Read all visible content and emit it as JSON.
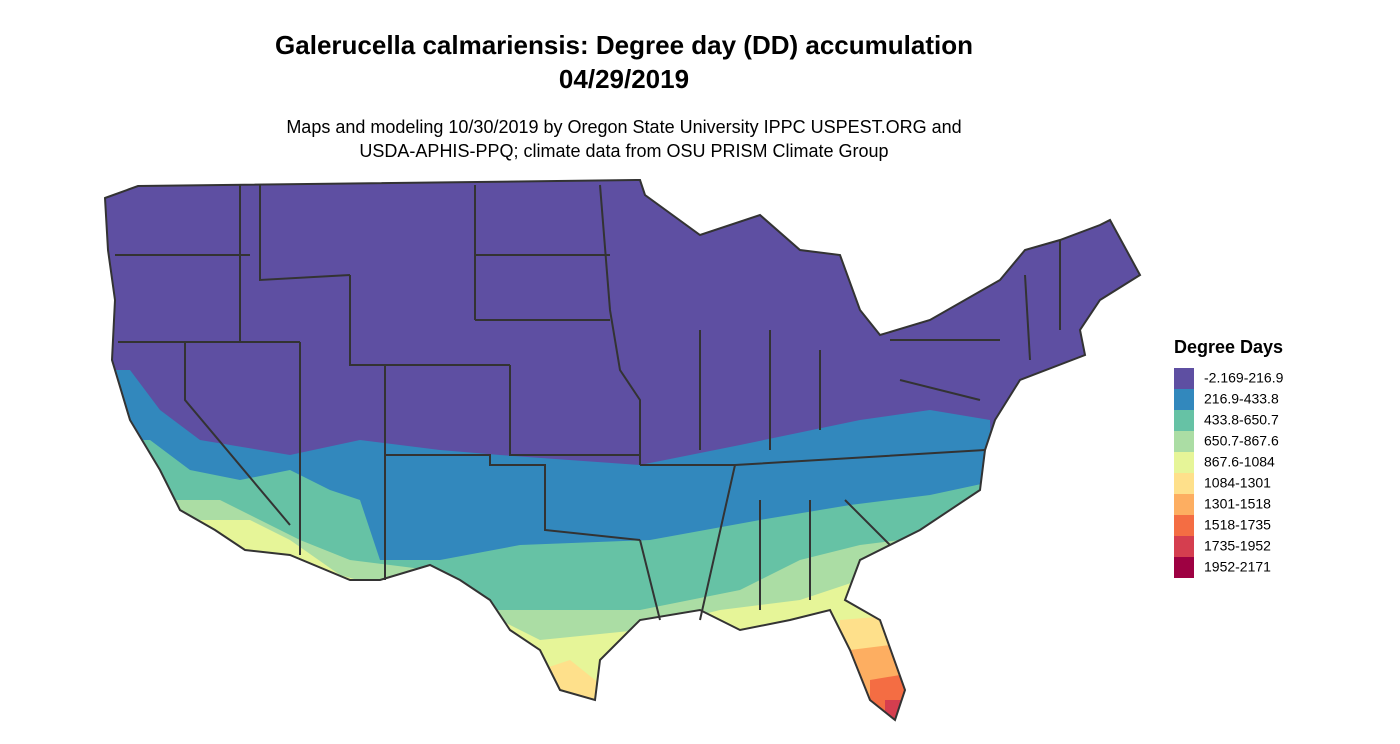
{
  "title": [
    "Galerucella calmariensis: Degree day (DD) accumulation",
    "04/29/2019"
  ],
  "subtitle": [
    "Maps and modeling 10/30/2019 by Oregon State University IPPC USPEST.ORG and",
    "USDA-APHIS-PPQ; climate data from OSU PRISM Climate Group"
  ],
  "legend": {
    "title": "Degree Days",
    "items": [
      {
        "label": "-2.169-216.9",
        "color": "#5E4FA2"
      },
      {
        "label": "216.9-433.8",
        "color": "#3288BD"
      },
      {
        "label": "433.8-650.7",
        "color": "#66C2A5"
      },
      {
        "label": "650.7-867.6",
        "color": "#ABDDA4"
      },
      {
        "label": "867.6-1084",
        "color": "#E6F598"
      },
      {
        "label": "1084-1301",
        "color": "#FEE08B"
      },
      {
        "label": "1301-1518",
        "color": "#FDAE61"
      },
      {
        "label": "1518-1735",
        "color": "#F46D43"
      },
      {
        "label": "1735-1952",
        "color": "#D53E4F"
      },
      {
        "label": "1952-2171",
        "color": "#9E0142"
      }
    ]
  }
}
